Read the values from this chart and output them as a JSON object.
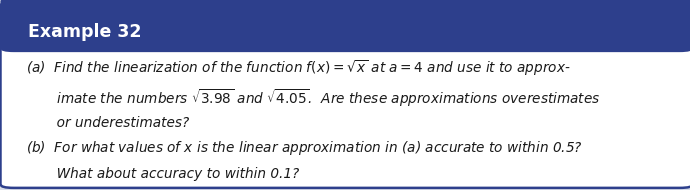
{
  "title": "Example 32",
  "title_bg_color": "#2d3f8c",
  "title_text_color": "#ffffff",
  "body_bg_color": "#ffffff",
  "outer_bg_color": "#d8dde8",
  "border_color": "#2d3f8c",
  "body_text_color": "#1a1a1a",
  "line_a1": "(a)  Find the linearization of the function $f(x) = \\sqrt{x}$ at $a = 4$ and use it to approx-",
  "line_a2": "       imate the numbers $\\sqrt{3.98}$ and $\\sqrt{4.05}$.  Are these approximations overestimates",
  "line_a3": "       or underestimates?",
  "line_b1": "(b)  For what values of $x$ is the linear approximation in (a) accurate to within 0.5?",
  "line_b2": "       What about accuracy to within 0.1?",
  "fontsize": 9.8,
  "title_fontsize": 12.5,
  "font_family": "DejaVu Sans"
}
